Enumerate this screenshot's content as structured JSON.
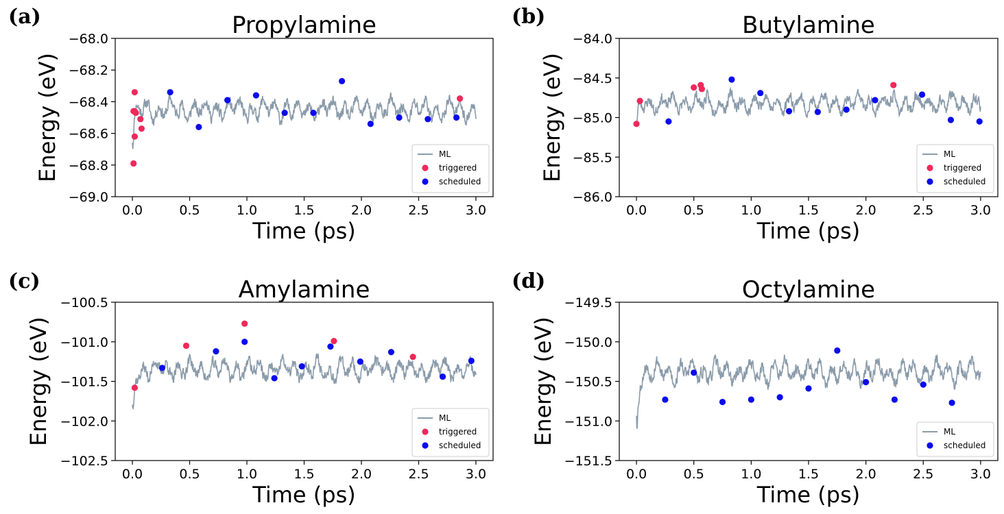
{
  "colors": {
    "ml": "#8a9baa",
    "triggered": "#f0285a",
    "scheduled": "#0a0aee"
  },
  "chart_data": [
    {
      "type": "line",
      "panel": "(a)",
      "title": "Propylamine",
      "xlabel": "Time (ps)",
      "ylabel": "Energy (eV)",
      "xlim": [
        -0.15,
        3.15
      ],
      "ylim": [
        -69.0,
        -68.0
      ],
      "xticks": [
        0.0,
        0.5,
        1.0,
        1.5,
        2.0,
        2.5,
        3.0
      ],
      "xtick_labels": [
        "0.0",
        "0.5",
        "1.0",
        "1.5",
        "2.0",
        "2.5",
        "3.0"
      ],
      "yticks": [
        -69.0,
        -68.8,
        -68.6,
        -68.4,
        -68.2,
        -68.0
      ],
      "ytick_labels": [
        "−69.0",
        "−68.8",
        "−68.6",
        "−68.4",
        "−68.2",
        "−68.0"
      ],
      "legend_position": "lower-right",
      "legend": [
        "ML",
        "triggered",
        "scheduled"
      ],
      "ml": {
        "start": -68.8,
        "mean": -68.45,
        "amp": 0.07,
        "noise": 0.06,
        "seed": 11
      },
      "triggered": {
        "x": [
          0.01,
          0.02,
          0.02,
          0.03,
          0.07,
          0.08,
          0.02,
          0.01,
          2.86
        ],
        "y": [
          -68.79,
          -68.62,
          -68.46,
          -68.47,
          -68.51,
          -68.57,
          -68.34,
          -68.46,
          -68.38
        ]
      },
      "scheduled": {
        "x": [
          0.33,
          0.58,
          0.83,
          1.08,
          1.33,
          1.58,
          1.83,
          2.08,
          2.33,
          2.58,
          2.83
        ],
        "y": [
          -68.34,
          -68.56,
          -68.39,
          -68.36,
          -68.47,
          -68.47,
          -68.27,
          -68.54,
          -68.5,
          -68.51,
          -68.5
        ]
      }
    },
    {
      "type": "line",
      "panel": "(b)",
      "title": "Butylamine",
      "xlabel": "Time (ps)",
      "ylabel": "Energy (eV)",
      "xlim": [
        -0.15,
        3.15
      ],
      "ylim": [
        -86.0,
        -84.0
      ],
      "xticks": [
        0.0,
        0.5,
        1.0,
        1.5,
        2.0,
        2.5,
        3.0
      ],
      "xtick_labels": [
        "0.0",
        "0.5",
        "1.0",
        "1.5",
        "2.0",
        "2.5",
        "3.0"
      ],
      "yticks": [
        -86.0,
        -85.5,
        -85.0,
        -84.5,
        -84.0
      ],
      "ytick_labels": [
        "−86.0",
        "−85.5",
        "−85.0",
        "−84.5",
        "−84.0"
      ],
      "legend_position": "lower-right",
      "legend": [
        "ML",
        "triggered",
        "scheduled"
      ],
      "ml": {
        "start": -85.3,
        "mean": -84.82,
        "amp": 0.12,
        "noise": 0.11,
        "seed": 23
      },
      "triggered": {
        "x": [
          0.0,
          0.03,
          0.5,
          0.56,
          0.57,
          2.24
        ],
        "y": [
          -85.08,
          -84.79,
          -84.62,
          -84.59,
          -84.64,
          -84.59
        ]
      },
      "scheduled": {
        "x": [
          0.28,
          0.83,
          1.08,
          1.33,
          1.58,
          1.83,
          2.08,
          2.49,
          2.74,
          2.99
        ],
        "y": [
          -85.05,
          -84.52,
          -84.69,
          -84.92,
          -84.93,
          -84.9,
          -84.78,
          -84.71,
          -85.03,
          -85.05
        ]
      }
    },
    {
      "type": "line",
      "panel": "(c)",
      "title": "Amylamine",
      "xlabel": "Time (ps)",
      "ylabel": "Energy (eV)",
      "xlim": [
        -0.15,
        3.15
      ],
      "ylim": [
        -102.5,
        -100.5
      ],
      "xticks": [
        0.0,
        0.5,
        1.0,
        1.5,
        2.0,
        2.5,
        3.0
      ],
      "xtick_labels": [
        "0.0",
        "0.5",
        "1.0",
        "1.5",
        "2.0",
        "2.5",
        "3.0"
      ],
      "yticks": [
        -102.5,
        -102.0,
        -101.5,
        -101.0,
        -100.5
      ],
      "ytick_labels": [
        "−102.5",
        "−102.0",
        "−101.5",
        "−101.0",
        "−100.5"
      ],
      "legend_position": "lower-right",
      "legend": [
        "ML",
        "triggered",
        "scheduled"
      ],
      "ml": {
        "start": -102.2,
        "mean": -101.35,
        "amp": 0.14,
        "noise": 0.12,
        "seed": 37
      },
      "triggered": {
        "x": [
          0.02,
          0.47,
          0.98,
          1.76,
          2.45
        ],
        "y": [
          -101.58,
          -101.05,
          -100.77,
          -100.99,
          -101.19
        ]
      },
      "scheduled": {
        "x": [
          0.26,
          0.73,
          0.98,
          1.24,
          1.48,
          1.73,
          1.99,
          2.26,
          2.71,
          2.96
        ],
        "y": [
          -101.33,
          -101.12,
          -101.0,
          -101.46,
          -101.31,
          -101.06,
          -101.25,
          -101.13,
          -101.44,
          -101.24
        ]
      }
    },
    {
      "type": "line",
      "panel": "(d)",
      "title": "Octylamine",
      "xlabel": "Time (ps)",
      "ylabel": "Energy (eV)",
      "xlim": [
        -0.15,
        3.15
      ],
      "ylim": [
        -151.5,
        -149.5
      ],
      "xticks": [
        0.0,
        0.5,
        1.0,
        1.5,
        2.0,
        2.5,
        3.0
      ],
      "xtick_labels": [
        "0.0",
        "0.5",
        "1.0",
        "1.5",
        "2.0",
        "2.5",
        "3.0"
      ],
      "yticks": [
        -151.5,
        -151.0,
        -150.5,
        -150.0,
        -149.5
      ],
      "ytick_labels": [
        "−151.5",
        "−151.0",
        "−150.5",
        "−150.0",
        "−149.5"
      ],
      "legend_position": "lower-right",
      "legend": [
        "ML",
        "scheduled"
      ],
      "ml": {
        "start": -151.3,
        "mean": -150.38,
        "amp": 0.15,
        "noise": 0.13,
        "seed": 53
      },
      "triggered": {
        "x": [],
        "y": []
      },
      "scheduled": {
        "x": [
          0.25,
          0.5,
          0.75,
          1.0,
          1.25,
          1.5,
          1.75,
          2.0,
          2.25,
          2.5,
          2.75
        ],
        "y": [
          -150.73,
          -150.39,
          -150.76,
          -150.73,
          -150.7,
          -150.59,
          -150.11,
          -150.51,
          -150.73,
          -150.54,
          -150.77
        ]
      }
    }
  ]
}
